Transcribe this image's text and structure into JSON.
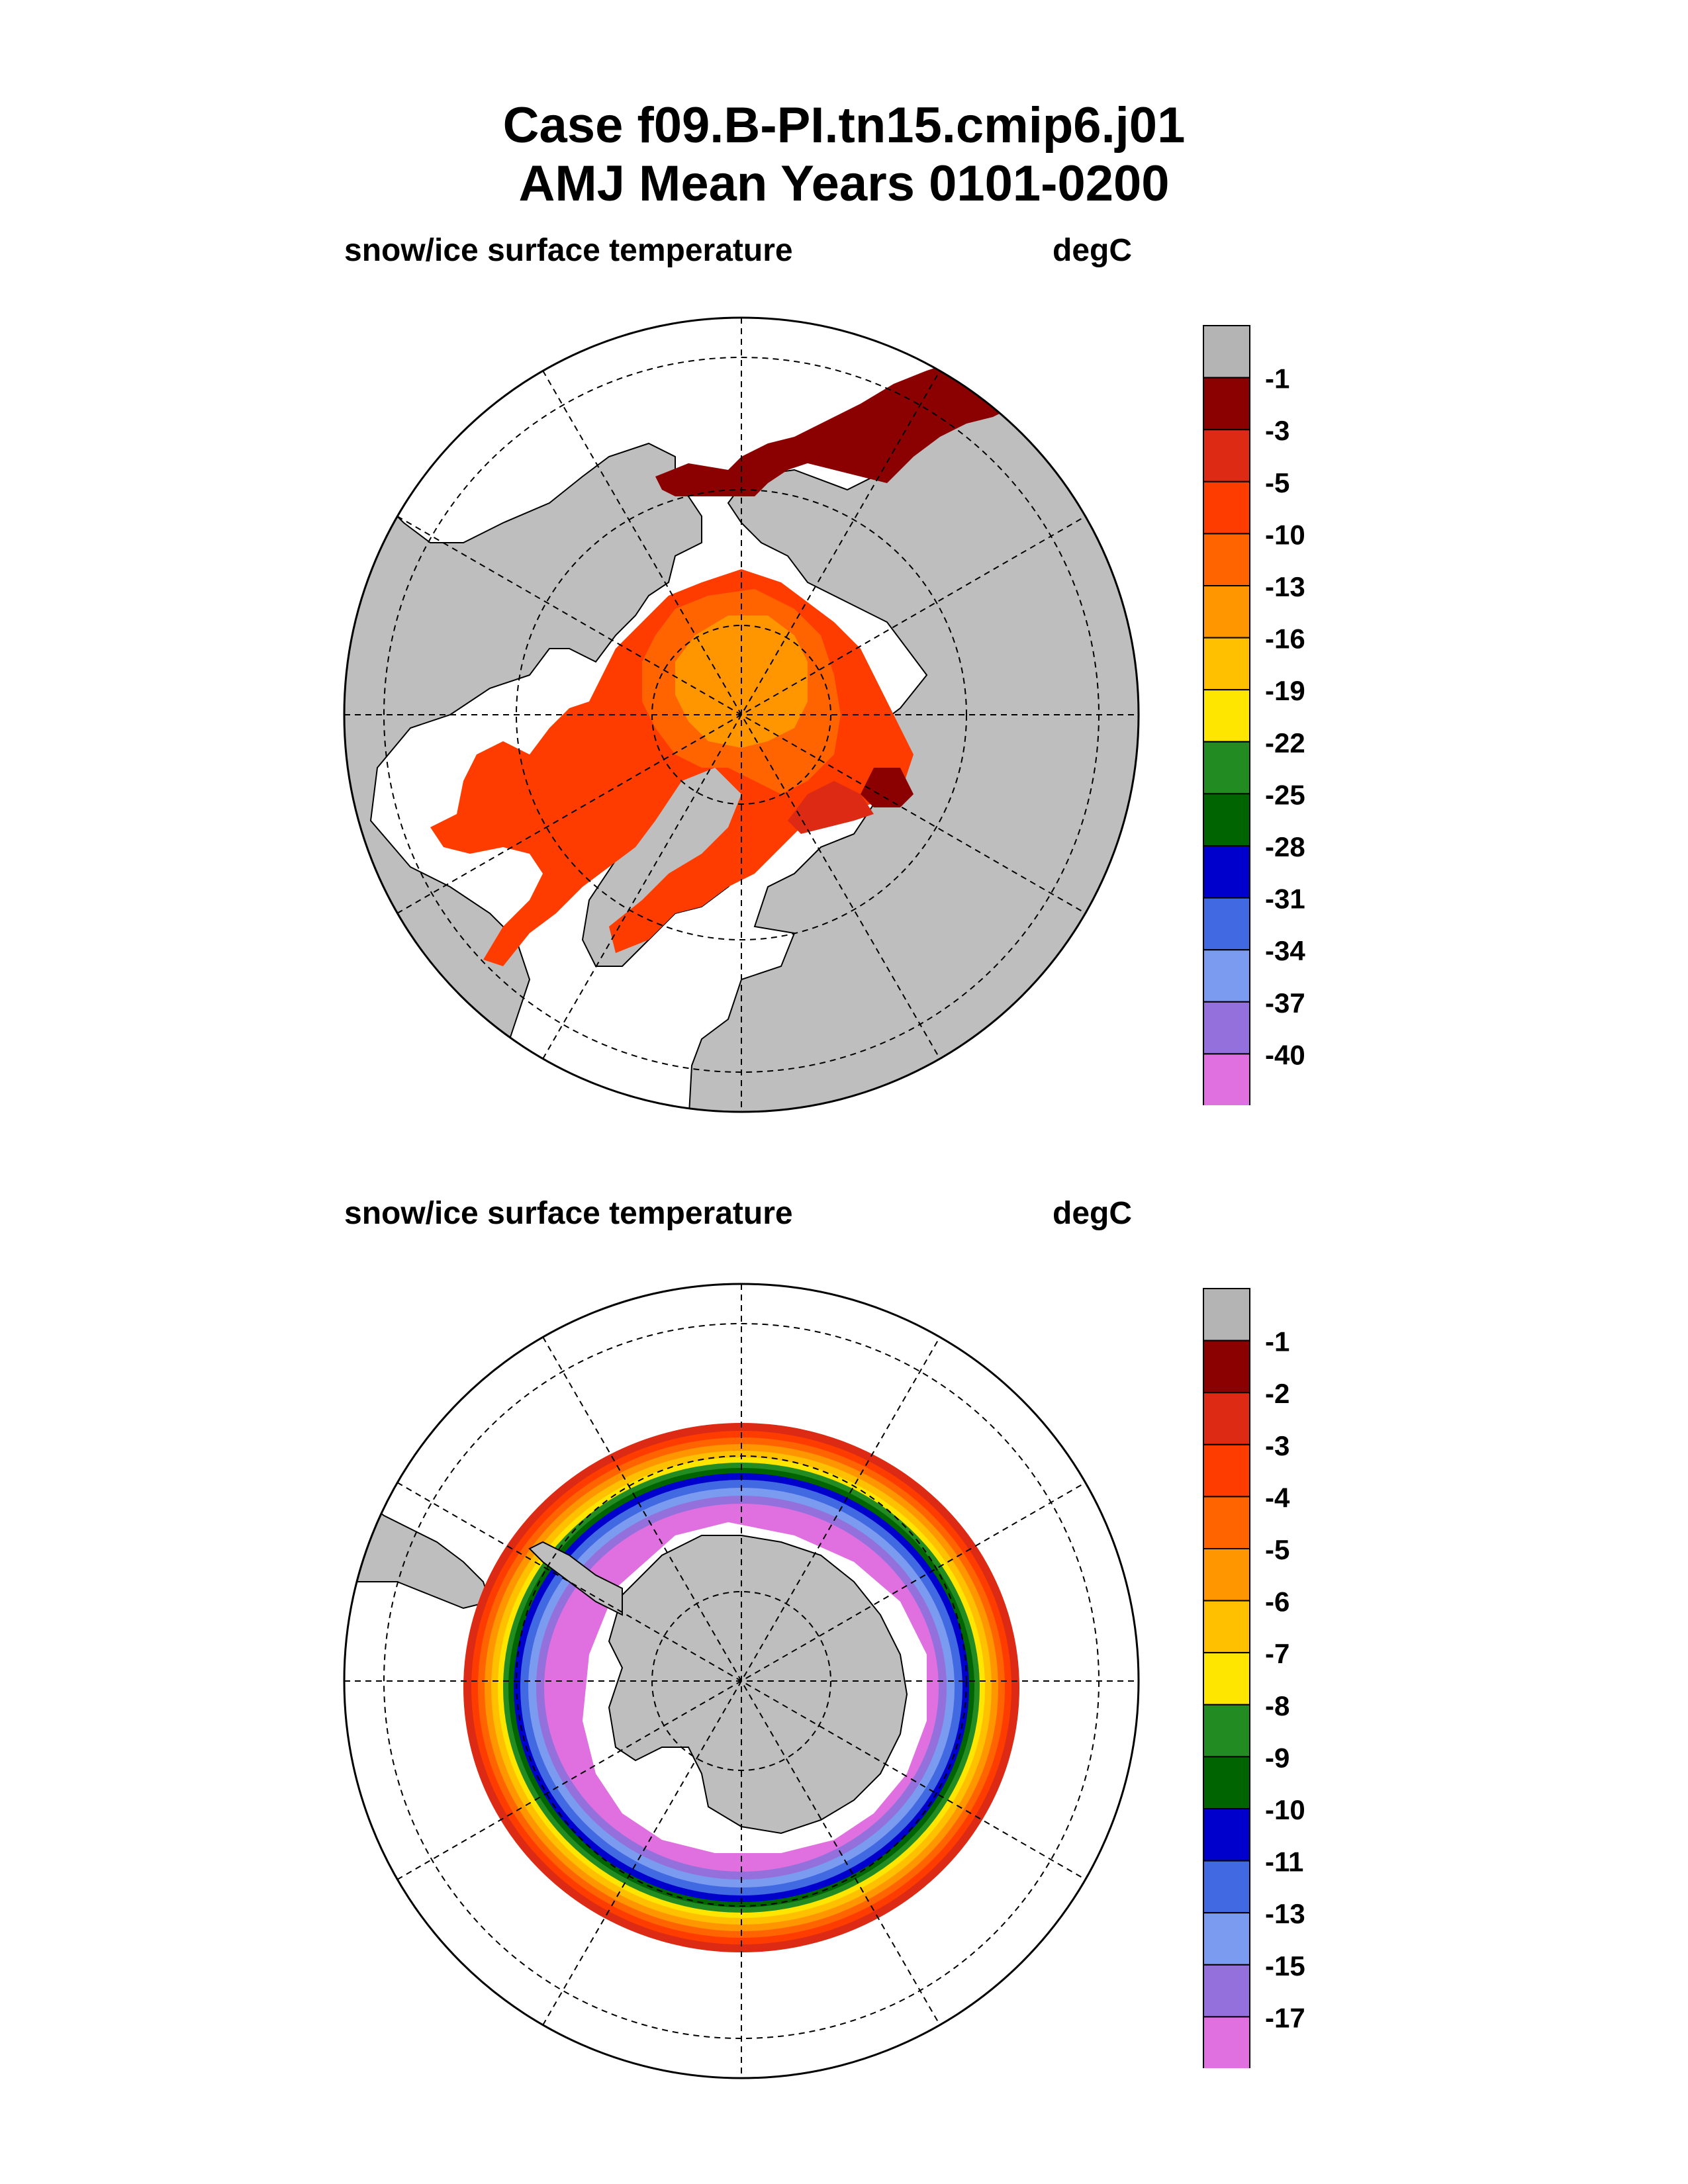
{
  "header": {
    "title_line1": "Case f09.B-PI.tn15.cmip6.j01",
    "title_line2": "AMJ Mean   Years 0101-0200"
  },
  "panels": [
    {
      "id": "north",
      "variable_label": "snow/ice surface temperature",
      "units_label": "degC",
      "colorbar_labels": [
        "-1",
        "-3",
        "-5",
        "-10",
        "-13",
        "-16",
        "-19",
        "-22",
        "-25",
        "-28",
        "-31",
        "-34",
        "-37",
        "-40"
      ]
    },
    {
      "id": "south",
      "variable_label": "snow/ice surface temperature",
      "units_label": "degC",
      "colorbar_labels": [
        "-1",
        "-2",
        "-3",
        "-4",
        "-5",
        "-6",
        "-7",
        "-8",
        "-9",
        "-10",
        "-11",
        "-13",
        "-15",
        "-17"
      ]
    }
  ],
  "colors": {
    "land": "#bebebe",
    "colorbar": [
      "#b4b4b4",
      "#8b0000",
      "#dc2a14",
      "#ff3c00",
      "#ff6400",
      "#ff9600",
      "#ffc000",
      "#ffe600",
      "#228b22",
      "#006400",
      "#0000cd",
      "#4169e1",
      "#7b9bf0",
      "#9370db",
      "#e070e0"
    ]
  }
}
